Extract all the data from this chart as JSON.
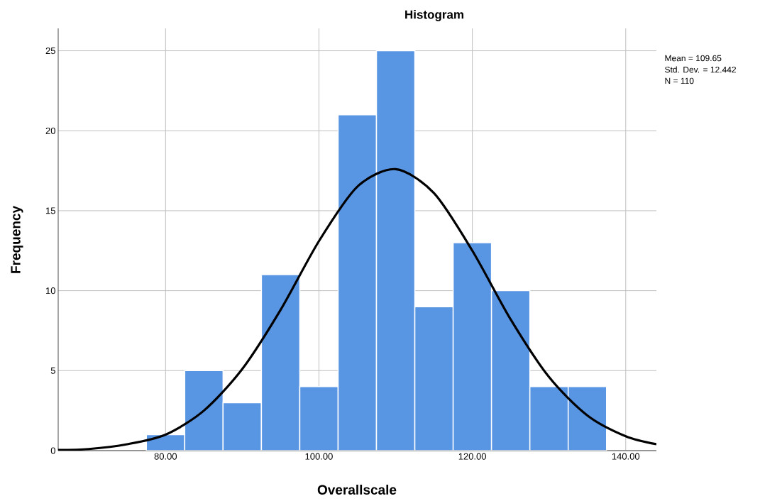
{
  "chart_data": {
    "type": "histogram",
    "title": "Histogram",
    "xlabel": "Overallscale",
    "ylabel": "Frequency",
    "bins": [
      77.5,
      82.5,
      87.5,
      92.5,
      97.5,
      102.5,
      107.5,
      112.5,
      117.5,
      122.5,
      127.5,
      132.5,
      137.5
    ],
    "values": [
      1,
      5,
      3,
      11,
      4,
      21,
      25,
      9,
      13,
      10,
      4,
      4
    ],
    "color": "#5895e3",
    "series": [
      {
        "type": "line",
        "color": "#000000",
        "x": [
          66,
          70,
          75,
          80,
          85,
          90,
          95,
          100,
          105,
          110,
          115,
          120,
          125,
          130,
          135,
          140,
          144
        ],
        "values": [
          0.04,
          0.1,
          0.4,
          1.0,
          2.5,
          5.1,
          8.8,
          13.1,
          16.5,
          17.6,
          16.1,
          12.5,
          8.2,
          4.6,
          2.2,
          0.9,
          0.4
        ]
      }
    ],
    "xlim": [
      66,
      144
    ],
    "xticks": [
      {
        "value": 80,
        "label": "80.00"
      },
      {
        "value": 100,
        "label": "100.00"
      },
      {
        "value": 120,
        "label": "120.00"
      },
      {
        "value": 140,
        "label": "140.00"
      }
    ],
    "ylim": [
      0,
      26.4
    ],
    "yticks": [
      0,
      5,
      10,
      15,
      20,
      25
    ],
    "grid": true,
    "annotations": [
      "Mean = 109.65",
      "Std. Dev. = 12.442",
      "N = 110"
    ]
  }
}
